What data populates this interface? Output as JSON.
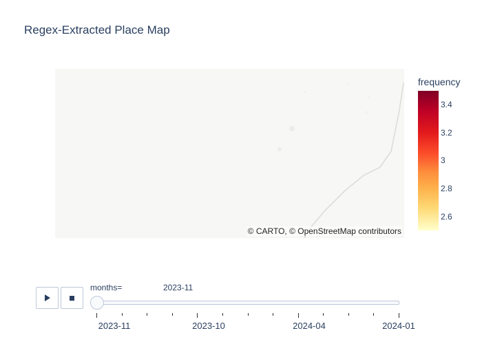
{
  "title": "Regex-Extracted Place Map",
  "map": {
    "attribution": "© CARTO, © OpenStreetMap contributors",
    "background": "#f7f7f5"
  },
  "colorbar": {
    "title": "frequency",
    "ticks": [
      "3.4",
      "3.2",
      "3",
      "2.8",
      "2.6"
    ],
    "colorscale": [
      "#800026",
      "#bd0026",
      "#e31a1c",
      "#fc4e2a",
      "#fd8d3c",
      "#feb24c",
      "#fed976",
      "#ffffcc"
    ]
  },
  "animation": {
    "play_icon": "play-icon",
    "stop_icon": "stop-icon",
    "slider_label": "months=",
    "current_value": "2023-11",
    "steps": [
      "2023-11",
      "2023-10",
      "2024-04",
      "2024-01"
    ]
  }
}
